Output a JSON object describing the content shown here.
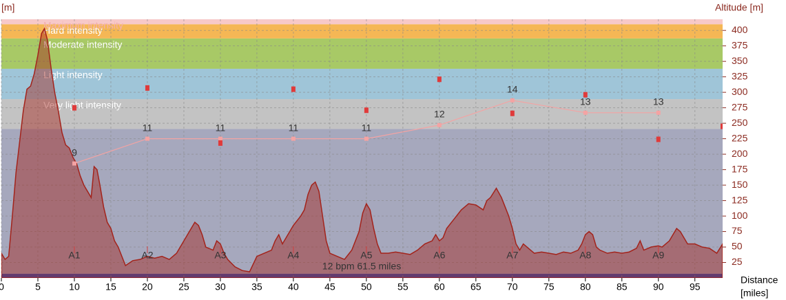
{
  "chart_data": {
    "type": "area",
    "y_unit_label": "[m]",
    "ylabel": "Altitude [m]",
    "xlabel": [
      "Distance",
      "[miles]"
    ],
    "xlim": [
      0,
      98.8
    ],
    "ylim": [
      0,
      418
    ],
    "xticks": [
      0,
      5,
      10,
      15,
      20,
      25,
      30,
      35,
      40,
      45,
      50,
      55,
      60,
      65,
      70,
      75,
      80,
      85,
      90,
      95
    ],
    "yticks": [
      25,
      50,
      75,
      100,
      125,
      150,
      175,
      200,
      225,
      250,
      275,
      300,
      325,
      350,
      375,
      400
    ],
    "grid": true,
    "bands": [
      {
        "from": 0,
        "to": 7,
        "color": "#2f4fb3"
      },
      {
        "from": 7,
        "to": 241,
        "color": "#a6a8bd"
      },
      {
        "name": "Very light intensity",
        "from": 241,
        "to": 289,
        "color": "#c3c3c3"
      },
      {
        "name": "Light intensity",
        "from": 289,
        "to": 338,
        "color": "#9fc5d8"
      },
      {
        "name": "Moderate intensity",
        "from": 338,
        "to": 387,
        "color": "#a8c966"
      },
      {
        "name": "Hard intensity",
        "from": 387,
        "to": 410,
        "color": "#f5b755"
      },
      {
        "name": "Maximum intensity",
        "from": 410,
        "to": 418,
        "color": "#f7c9c9"
      }
    ],
    "elevation": {
      "color": "#a3231b",
      "x": [
        0,
        0.5,
        1,
        1.5,
        2,
        2.5,
        3,
        3.5,
        4,
        4.5,
        5,
        5.5,
        5.9,
        6.3,
        6.8,
        7.3,
        7.8,
        8.3,
        8.8,
        9.3,
        9.8,
        10.3,
        10.8,
        11.3,
        11.8,
        12.3,
        12.7,
        13.1,
        13.5,
        14,
        14.5,
        15,
        15.5,
        16,
        16.5,
        17,
        18,
        19,
        20,
        21,
        22,
        23,
        24,
        25,
        26,
        26.5,
        27,
        27.5,
        28,
        29,
        29.5,
        30,
        30.5,
        31,
        32,
        33,
        34,
        35,
        36,
        37,
        37.5,
        38,
        38.5,
        39,
        40,
        41,
        41.5,
        42,
        42.5,
        43,
        43.5,
        44,
        44.5,
        45,
        46,
        47,
        48,
        49,
        49.5,
        50,
        50.5,
        51,
        51.5,
        52,
        53,
        54,
        55,
        56,
        57,
        58,
        59,
        59.5,
        60,
        60.5,
        61,
        62,
        63,
        64,
        65,
        66,
        66.5,
        67,
        67.8,
        68.5,
        69,
        69.5,
        70,
        70.5,
        71,
        71.5,
        72,
        73,
        74,
        75,
        76,
        77,
        78,
        79,
        79.5,
        80,
        80.5,
        81,
        81.5,
        82,
        83,
        84,
        85,
        86,
        87,
        87.5,
        88,
        89,
        90,
        90.5,
        91,
        91.5,
        92,
        92.5,
        93,
        93.5,
        94,
        95,
        96,
        97,
        98,
        98.8
      ],
      "values": [
        40,
        30,
        35,
        100,
        170,
        220,
        270,
        305,
        310,
        330,
        360,
        395,
        403,
        385,
        340,
        300,
        270,
        235,
        215,
        210,
        195,
        185,
        165,
        150,
        140,
        130,
        180,
        175,
        150,
        115,
        90,
        80,
        60,
        50,
        35,
        20,
        28,
        30,
        35,
        32,
        35,
        30,
        40,
        60,
        80,
        90,
        85,
        70,
        50,
        45,
        60,
        55,
        40,
        30,
        18,
        12,
        10,
        35,
        40,
        45,
        60,
        70,
        55,
        65,
        85,
        100,
        110,
        135,
        150,
        155,
        140,
        100,
        60,
        40,
        35,
        30,
        45,
        75,
        105,
        120,
        110,
        80,
        55,
        40,
        40,
        42,
        40,
        38,
        45,
        55,
        60,
        70,
        60,
        65,
        80,
        95,
        110,
        120,
        118,
        110,
        125,
        130,
        145,
        130,
        115,
        100,
        80,
        55,
        45,
        55,
        50,
        40,
        42,
        40,
        38,
        42,
        40,
        45,
        55,
        70,
        75,
        70,
        50,
        45,
        40,
        42,
        40,
        42,
        48,
        60,
        45,
        50,
        52,
        50,
        55,
        60,
        70,
        80,
        75,
        65,
        55,
        55,
        50,
        48,
        40,
        55
      ]
    },
    "heart_rate_line": {
      "color": "#f4a3a3",
      "x": [
        10,
        20,
        30,
        40,
        50,
        60,
        70,
        80,
        90
      ],
      "values": [
        185,
        225,
        225,
        225,
        225,
        247,
        287,
        267,
        267
      ],
      "point_labels": [
        "9",
        "11",
        "11",
        "11",
        "11",
        "12",
        "14",
        "13",
        "13"
      ]
    },
    "markers": {
      "color": "#e03a3a",
      "x": [
        10,
        20,
        30,
        40,
        50,
        60,
        70,
        80,
        90,
        98.8
      ],
      "values": [
        275,
        307,
        218,
        305,
        271,
        321,
        266,
        296,
        224,
        245
      ]
    },
    "checkpoints": {
      "x": [
        10,
        20,
        30,
        40,
        50,
        60,
        70,
        80,
        90
      ],
      "labels": [
        "A1",
        "A2",
        "A3",
        "A4",
        "A5",
        "A6",
        "A7",
        "A8",
        "A9"
      ]
    },
    "annotation": "12 bpm 61.5 miles"
  }
}
